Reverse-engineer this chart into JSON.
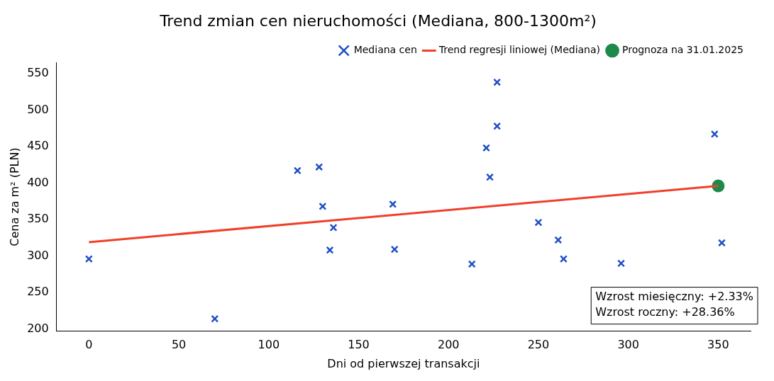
{
  "chart_data": {
    "type": "scatter",
    "title": "Trend zmian cen nieruchomości (Mediana, 800-1300m²)",
    "xlabel": "Dni od pierwszej transakcji",
    "ylabel": "Cena za m² (PLN)",
    "series": [
      {
        "name": "Mediana cen",
        "type": "scatter",
        "marker": "cross",
        "color": "#1f4fc4",
        "x": [
          0,
          70,
          116,
          128,
          130,
          134,
          136,
          169,
          170,
          213,
          221,
          223,
          227,
          227,
          250,
          261,
          264,
          296,
          348,
          352
        ],
        "values": [
          296,
          214,
          417,
          422,
          368,
          308,
          339,
          371,
          309,
          289,
          448,
          408,
          538,
          478,
          346,
          322,
          296,
          290,
          467,
          318
        ]
      },
      {
        "name": "Trend regresji liniowej (Mediana)",
        "type": "line",
        "marker": "none",
        "color": "#f0402a",
        "x": [
          0,
          350
        ],
        "values": [
          319,
          396
        ]
      },
      {
        "name": "Prognoza na 31.01.2025",
        "type": "scatter",
        "marker": "circle",
        "color": "#1e8a4a",
        "x": [
          350
        ],
        "values": [
          396
        ]
      }
    ],
    "xlim": [
      -18,
      368
    ],
    "xticks": [
      0,
      50,
      100,
      150,
      200,
      250,
      300,
      350
    ],
    "ylim": [
      197,
      565
    ],
    "yticks": [
      200,
      250,
      300,
      350,
      400,
      450,
      500,
      550
    ],
    "grid": false,
    "legend": "top right",
    "annotations": [
      "Wzrost miesięczny: +2.33%",
      "Wzrost roczny: +28.36%"
    ]
  }
}
